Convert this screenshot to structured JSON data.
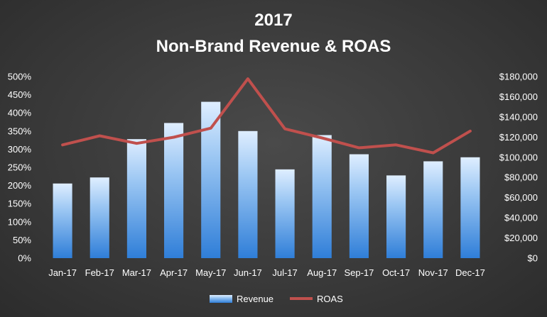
{
  "chart_data": {
    "type": "bar",
    "title": "2017",
    "subtitle": "Non-Brand Revenue & ROAS",
    "categories": [
      "Jan-17",
      "Feb-17",
      "Mar-17",
      "Apr-17",
      "May-17",
      "Jun-17",
      "Jul-17",
      "Aug-17",
      "Sep-17",
      "Oct-17",
      "Nov-17",
      "Dec-17"
    ],
    "series": [
      {
        "name": "Revenue",
        "type": "bar",
        "axis": "right",
        "values": [
          74000,
          80000,
          118000,
          134000,
          155000,
          126000,
          88000,
          122000,
          103000,
          82000,
          96000,
          100000
        ]
      },
      {
        "name": "ROAS",
        "type": "line",
        "axis": "left",
        "values": [
          312,
          337,
          316,
          333,
          358,
          494,
          356,
          331,
          304,
          312,
          290,
          350
        ]
      }
    ],
    "yleft": {
      "min": 0,
      "max": 500,
      "step": 50,
      "ticks": [
        "0%",
        "50%",
        "100%",
        "150%",
        "200%",
        "250%",
        "300%",
        "350%",
        "400%",
        "450%",
        "500%"
      ]
    },
    "yright": {
      "min": 0,
      "max": 180000,
      "step": 20000,
      "ticks": [
        "$0",
        "$20,000",
        "$40,000",
        "$60,000",
        "$80,000",
        "$100,000",
        "$120,000",
        "$140,000",
        "$160,000",
        "$180,000"
      ]
    },
    "grid": false,
    "legend_position": "bottom",
    "colors": {
      "bar_top": "#dfeeff",
      "bar_bottom": "#2f7ed8",
      "line": "#c0504d"
    }
  }
}
